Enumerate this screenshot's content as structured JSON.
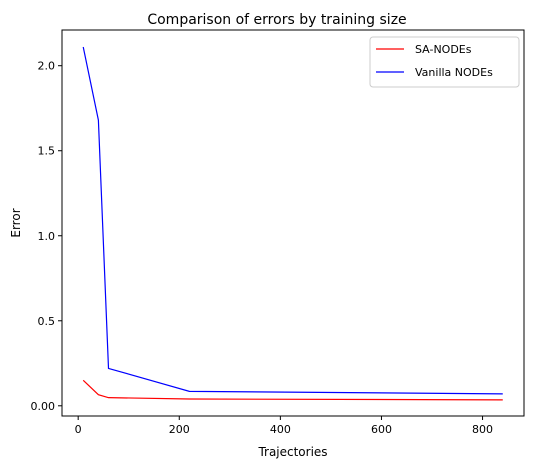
{
  "chart_data": {
    "type": "line",
    "title": "Comparison of errors by training size",
    "xlabel": "Trajectories",
    "ylabel": "Error",
    "xlim": [
      -32,
      882
    ],
    "ylim": [
      -0.06,
      2.21
    ],
    "xticks": [
      0,
      200,
      400,
      600,
      800
    ],
    "xtick_labels": [
      "0",
      "200",
      "400",
      "600",
      "800"
    ],
    "yticks": [
      0.0,
      0.5,
      1.0,
      1.5,
      2.0
    ],
    "ytick_labels": [
      "0.00",
      "0.5",
      "1.0",
      "1.5",
      "2.0"
    ],
    "grid": false,
    "legend_position": "top-right",
    "series": [
      {
        "name": "SA-NODEs",
        "color": "#ff0000",
        "x": [
          10,
          40,
          60,
          220,
          840
        ],
        "y": [
          0.15,
          0.065,
          0.048,
          0.04,
          0.035
        ]
      },
      {
        "name": "Vanilla NODEs",
        "color": "#0000ff",
        "x": [
          10,
          40,
          60,
          220,
          840
        ],
        "y": [
          2.11,
          1.68,
          0.22,
          0.085,
          0.07
        ]
      }
    ]
  }
}
